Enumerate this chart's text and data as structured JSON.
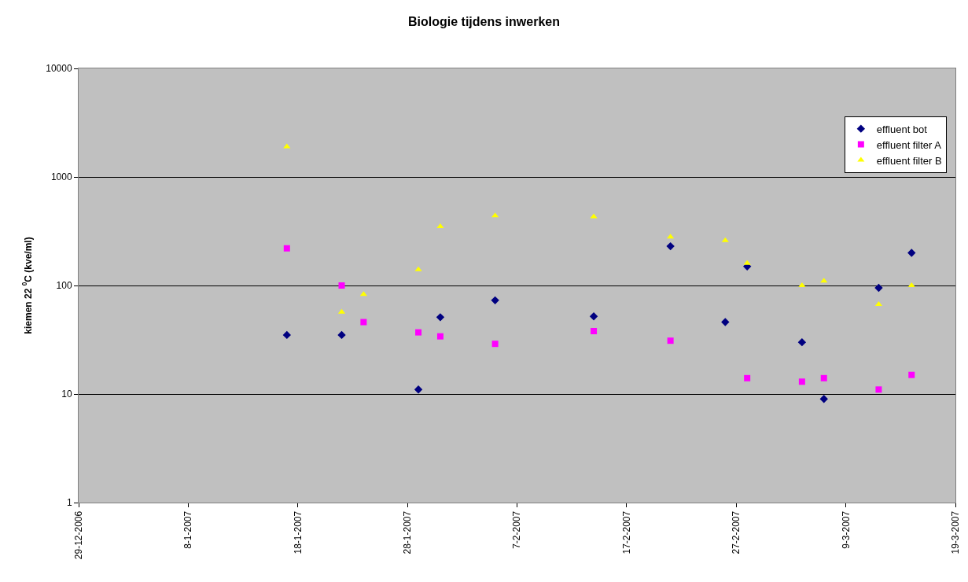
{
  "chart_data": {
    "type": "scatter",
    "title": "Biologie tijdens inwerken",
    "ylabel": "kiemen 22 $^{0}$C (kve/ml)",
    "log": true,
    "grid": "y",
    "legend": "top right",
    "ylim": [
      1,
      10000
    ],
    "yticks": [
      1,
      10,
      100,
      1000,
      10000
    ],
    "xlim": [
      "2006-12-29",
      "2007-03-19"
    ],
    "xticks": [
      {
        "value": "2006-12-29",
        "label": "29-12-2006"
      },
      {
        "value": "2007-01-08",
        "label": "8-1-2007"
      },
      {
        "value": "2007-01-18",
        "label": "18-1-2007"
      },
      {
        "value": "2007-01-28",
        "label": "28-1-2007"
      },
      {
        "value": "2007-02-07",
        "label": "7-2-2007"
      },
      {
        "value": "2007-02-17",
        "label": "17-2-2007"
      },
      {
        "value": "2007-02-27",
        "label": "27-2-2007"
      },
      {
        "value": "2007-03-09",
        "label": "9-3-2007"
      },
      {
        "value": "2007-03-19",
        "label": "19-3-2007"
      }
    ],
    "series": [
      {
        "name": "effluent bot",
        "color": "#000080",
        "marker": "diamond",
        "x": [
          "2007-01-17",
          "2007-01-22",
          "2007-01-29",
          "2007-01-31",
          "2007-02-05",
          "2007-02-14",
          "2007-02-21",
          "2007-02-26",
          "2007-02-28",
          "2007-03-05",
          "2007-03-07",
          "2007-03-12",
          "2007-03-15"
        ],
        "values": [
          35,
          35,
          11,
          51,
          73,
          52,
          230,
          46,
          150,
          30,
          9,
          95,
          200
        ]
      },
      {
        "name": "effluent filter A",
        "color": "#ff00ff",
        "marker": "square",
        "x": [
          "2007-01-17",
          "2007-01-22",
          "2007-01-24",
          "2007-01-29",
          "2007-01-31",
          "2007-02-05",
          "2007-02-14",
          "2007-02-21",
          "2007-02-28",
          "2007-03-05",
          "2007-03-07",
          "2007-03-12",
          "2007-03-15"
        ],
        "values": [
          220,
          100,
          46,
          37,
          34,
          29,
          38,
          31,
          14,
          13,
          14,
          11,
          15
        ]
      },
      {
        "name": "effluent filter B",
        "color": "#ffff00",
        "marker": "triangle",
        "x": [
          "2007-01-17",
          "2007-01-22",
          "2007-01-24",
          "2007-01-29",
          "2007-01-31",
          "2007-02-05",
          "2007-02-14",
          "2007-02-21",
          "2007-02-26",
          "2007-02-28",
          "2007-03-05",
          "2007-03-07",
          "2007-03-12",
          "2007-03-15"
        ],
        "values": [
          1900,
          57,
          83,
          140,
          350,
          440,
          430,
          280,
          260,
          160,
          100,
          110,
          67,
          100
        ]
      }
    ]
  }
}
